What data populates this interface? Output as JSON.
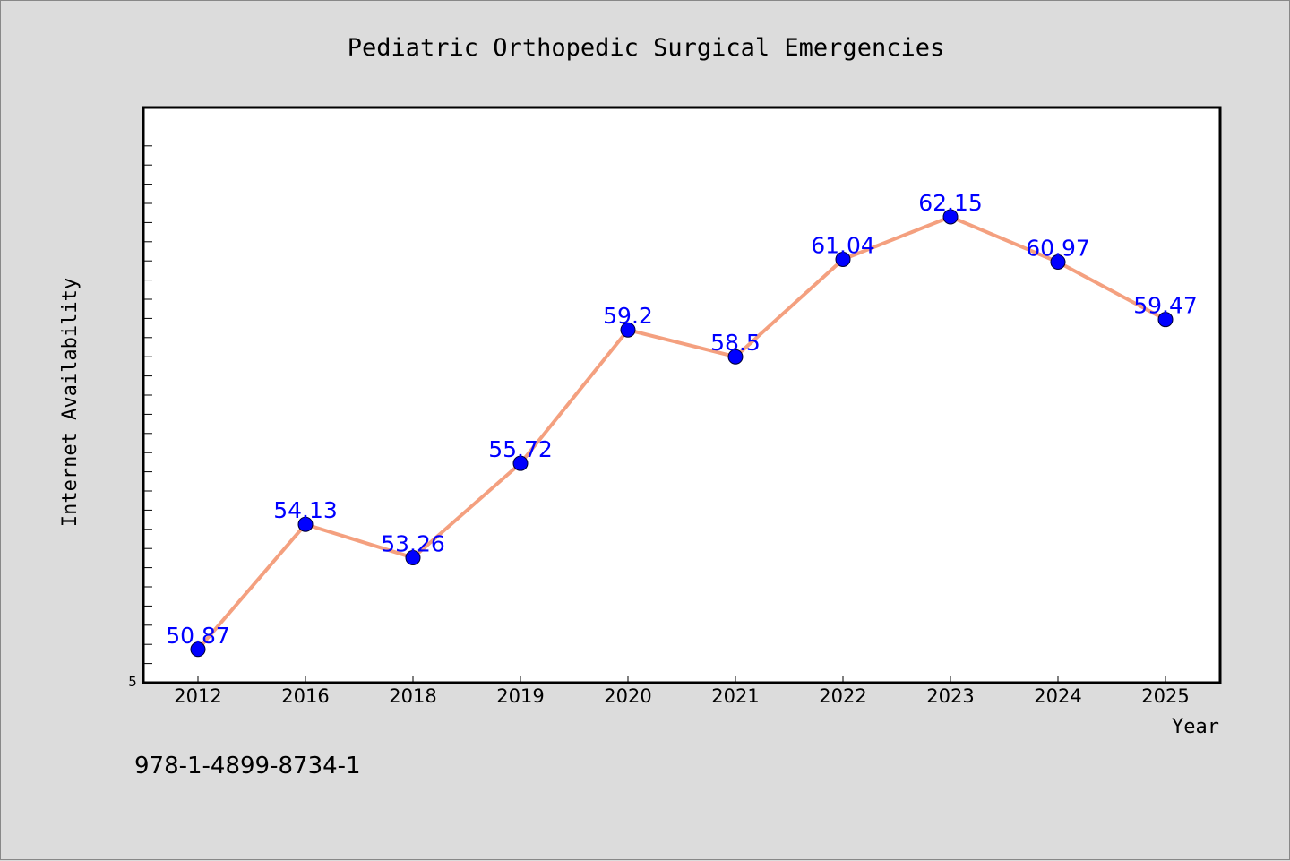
{
  "footer": {
    "isbn": "978-1-4899-8734-1"
  },
  "colors": {
    "line": "#f4a07f",
    "marker": "#0000ff",
    "label": "#0000ff",
    "background": "#dcdcdc",
    "plot_bg": "#ffffff"
  },
  "chart_data": {
    "type": "line",
    "title": "Pediatric Orthopedic Surgical Emergencies",
    "xlabel": "Year",
    "ylabel": "Internet Availability",
    "categories": [
      "2012",
      "2016",
      "2018",
      "2019",
      "2020",
      "2021",
      "2022",
      "2023",
      "2024",
      "2025"
    ],
    "series": [
      {
        "values": [
          50.87,
          54.13,
          53.26,
          55.72,
          59.2,
          58.5,
          61.04,
          62.15,
          60.97,
          59.47
        ]
      }
    ],
    "data_labels": [
      "50.87",
      "54.13",
      "53.26",
      "55.72",
      "59.2",
      "58.5",
      "61.04",
      "62.15",
      "60.97",
      "59.47"
    ],
    "y_tick_labels": [
      "5"
    ],
    "ylim": [
      50,
      65
    ],
    "grid": false,
    "legend": "none"
  }
}
